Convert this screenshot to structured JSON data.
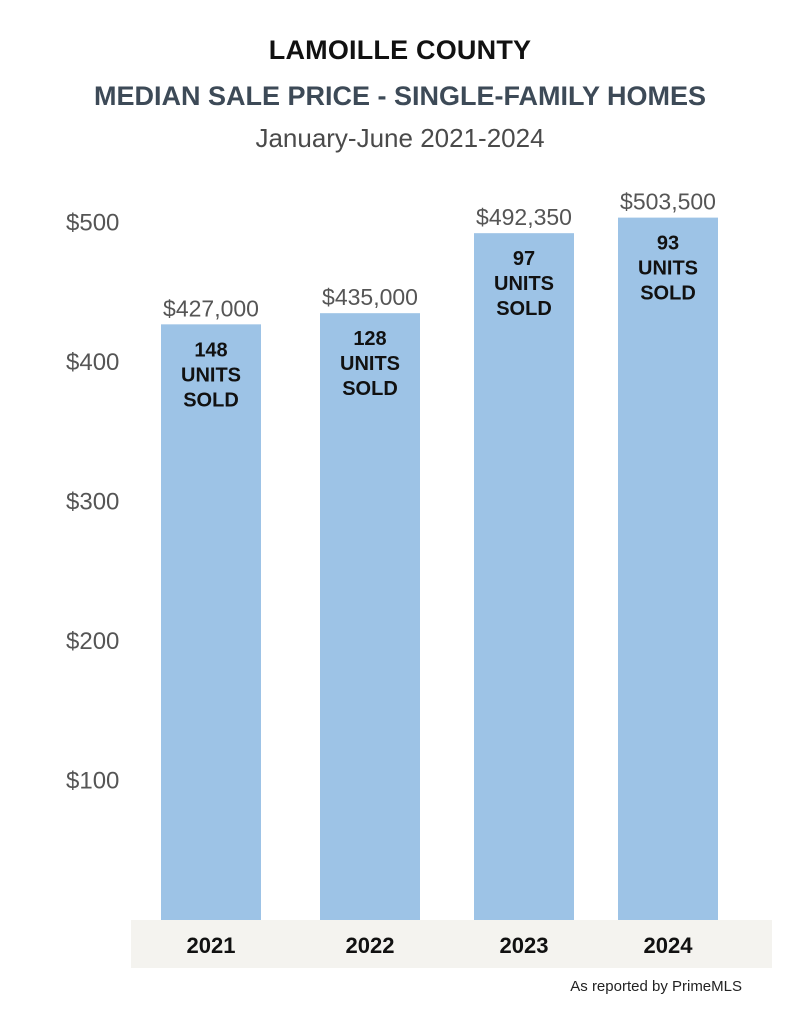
{
  "header": {
    "title": "LAMOILLE COUNTY",
    "subtitle": "MEDIAN SALE PRICE - SINGLE-FAMILY HOMES",
    "period": "January-June 2021-2024"
  },
  "chart_data": {
    "type": "bar",
    "categories": [
      "2021",
      "2022",
      "2023",
      "2024"
    ],
    "values": [
      427000,
      435000,
      492350,
      503500
    ],
    "value_labels": [
      "$427,000",
      "$435,000",
      "$492,350",
      "$503,500"
    ],
    "inner_labels": [
      [
        "148",
        "UNITS",
        "SOLD"
      ],
      [
        "128",
        "UNITS",
        "SOLD"
      ],
      [
        "97",
        "UNITS",
        "SOLD"
      ],
      [
        "93",
        "UNITS",
        "SOLD"
      ]
    ],
    "y_ticks": [
      100000,
      200000,
      300000,
      400000,
      500000
    ],
    "y_tick_labels": [
      "$100",
      "$200",
      "$300",
      "$400",
      "$500"
    ],
    "ylim": [
      0,
      500000
    ],
    "grid": false,
    "colors": {
      "bar": "#9dc3e6",
      "category_band": "#f4f3ef",
      "tick_text": "#555555",
      "label_text": "#111111"
    }
  },
  "footer": {
    "source": "As reported by PrimeMLS"
  }
}
